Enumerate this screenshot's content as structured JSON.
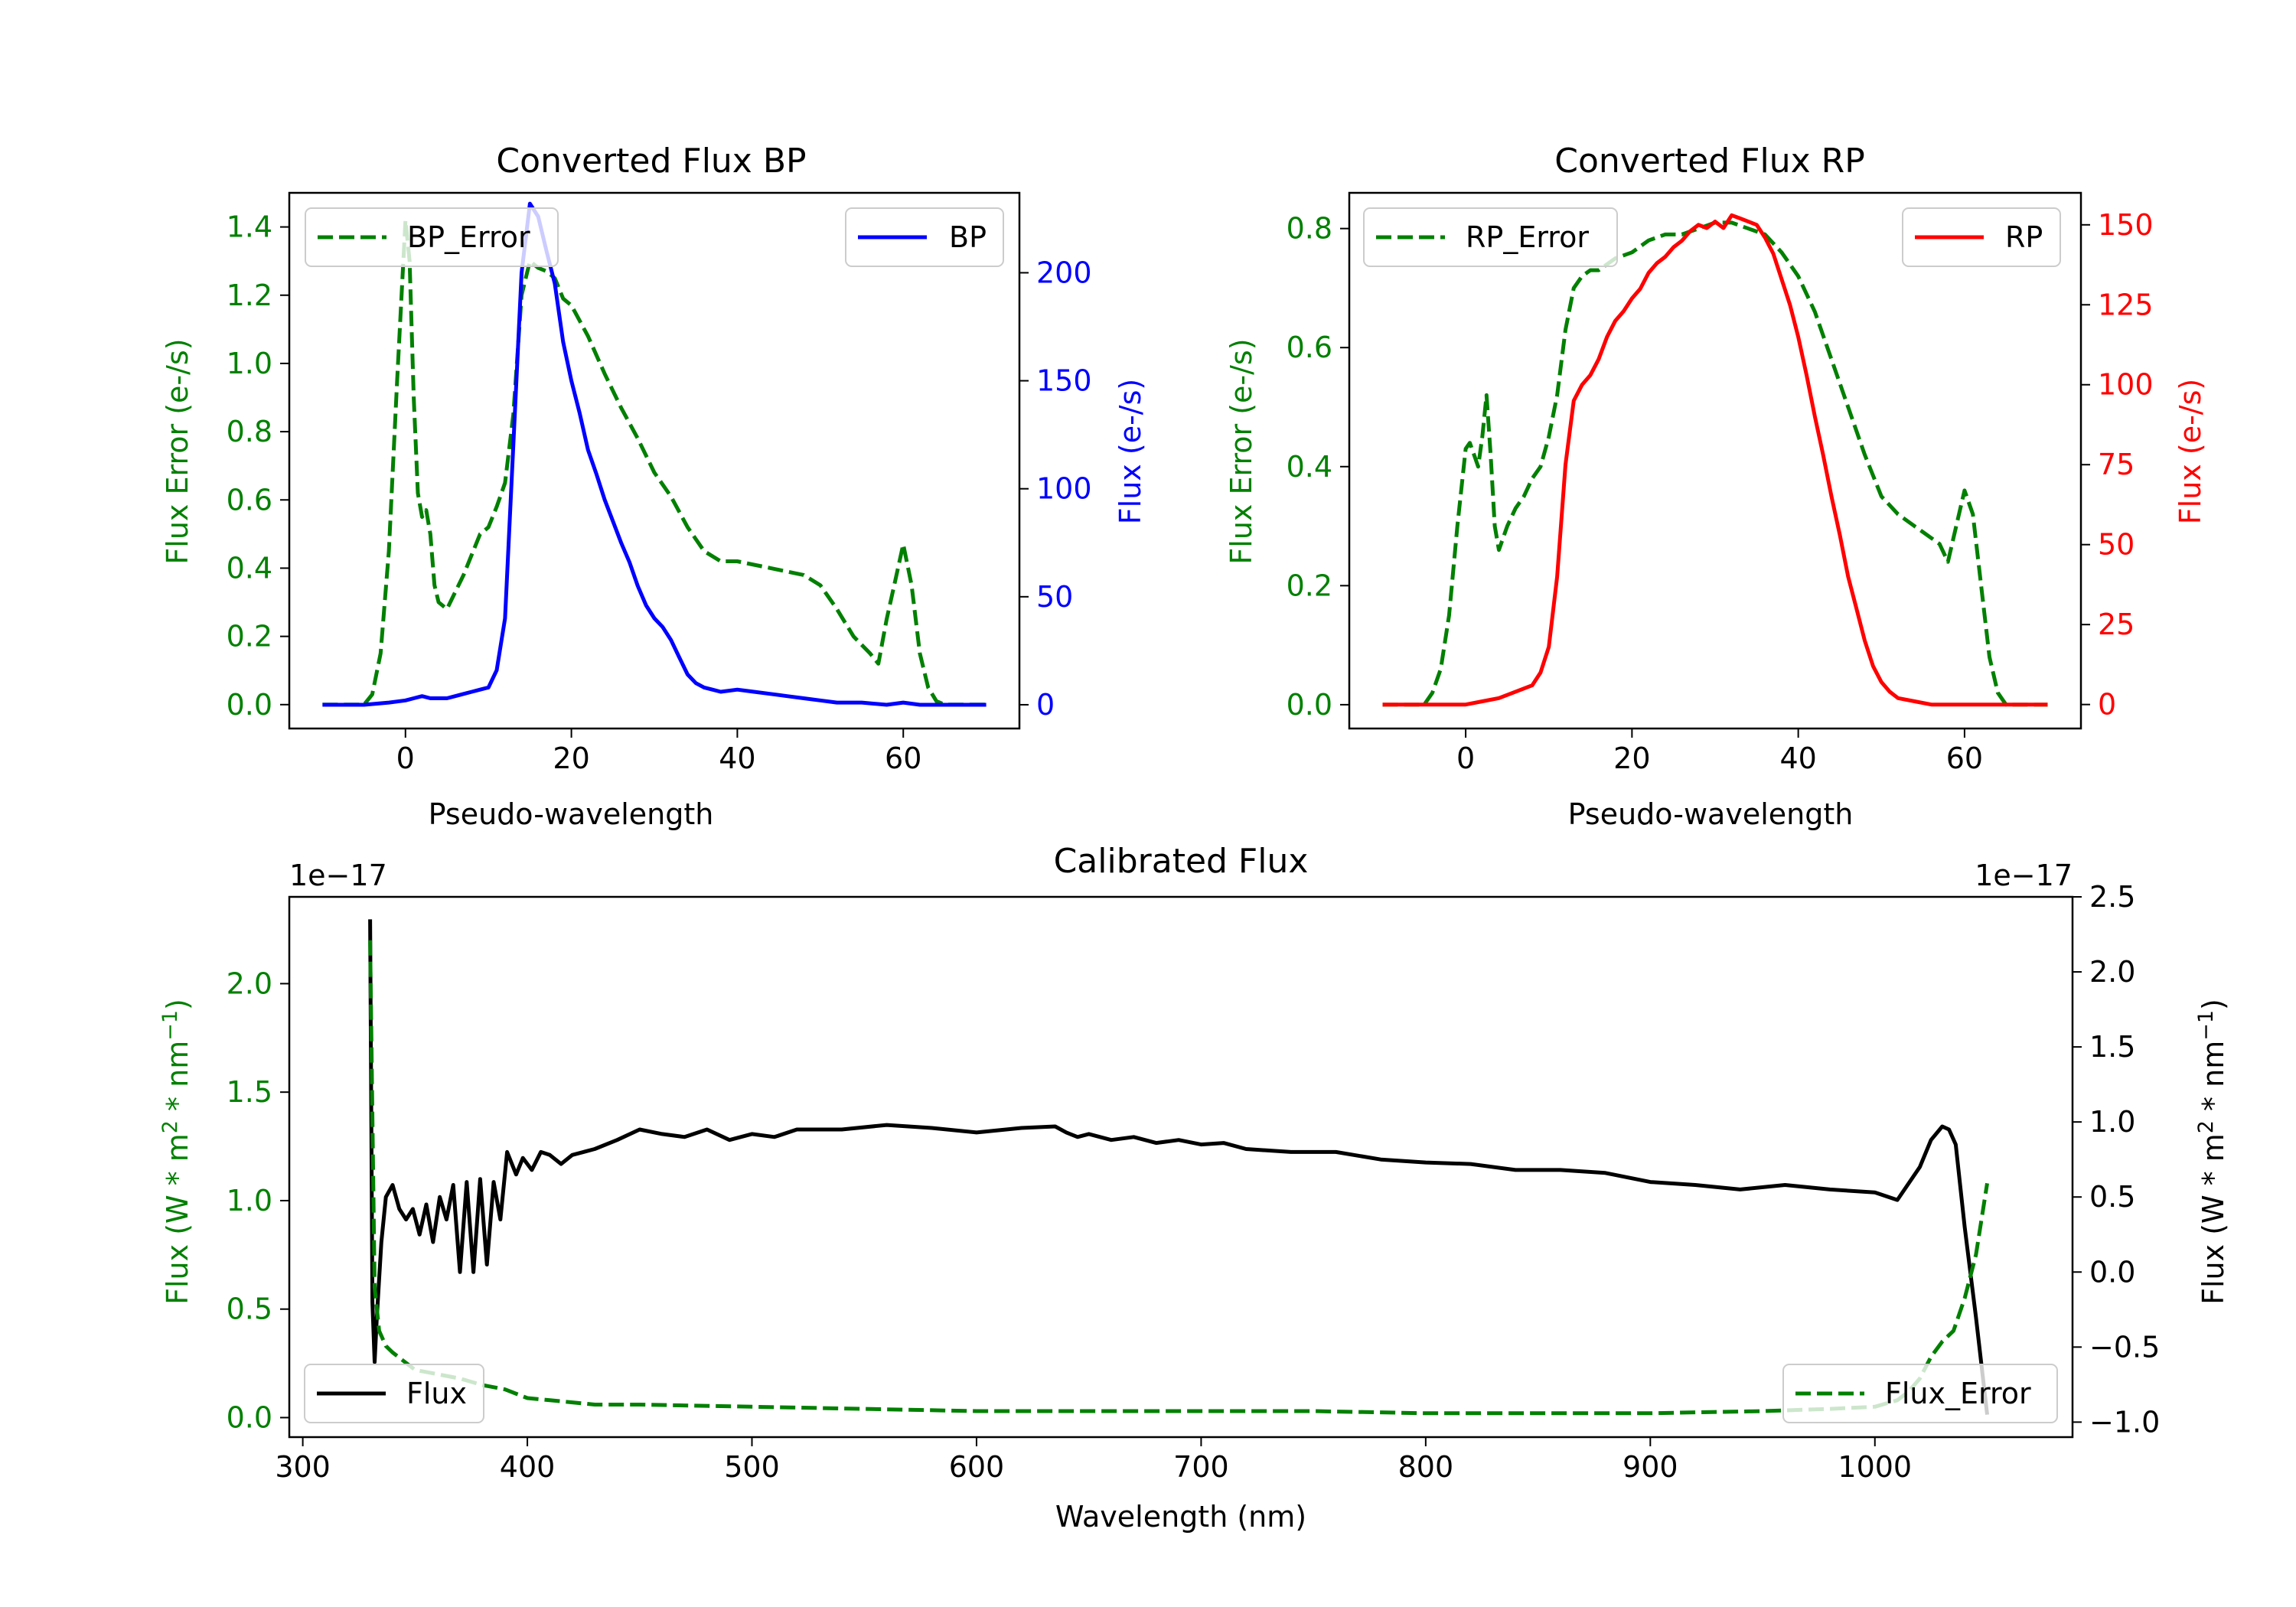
{
  "colors": {
    "green": "#008000",
    "blue": "#0000ff",
    "red": "#ff0000",
    "black": "#000000"
  },
  "chart_data": [
    {
      "id": "bp",
      "type": "line",
      "title": "Converted Flux BP",
      "xlabel": "Pseudo-wavelength",
      "xlim": [
        -14,
        74
      ],
      "xticks": [
        0,
        20,
        40,
        60
      ],
      "left_axis": {
        "label": "Flux Error (e-/s)",
        "color": "#008000",
        "ylim": [
          -0.07,
          1.5
        ],
        "ticks": [
          0.0,
          0.2,
          0.4,
          0.6,
          0.8,
          1.0,
          1.2,
          1.4
        ],
        "tick_labels": [
          "0.0",
          "0.2",
          "0.4",
          "0.6",
          "0.8",
          "1.0",
          "1.2",
          "1.4"
        ]
      },
      "right_axis": {
        "label": "Flux (e-/s)",
        "color": "#0000ff",
        "ylim": [
          -11,
          237
        ],
        "ticks": [
          0,
          50,
          100,
          150,
          200
        ],
        "tick_labels": [
          "0",
          "50",
          "100",
          "150",
          "200"
        ]
      },
      "series": [
        {
          "name": "BP_Error",
          "axis": "left",
          "style": "dashed",
          "color": "#008000",
          "x": [
            -10,
            -5,
            -4,
            -3,
            -2,
            -1,
            0,
            0.5,
            1,
            1.5,
            2,
            2.5,
            3,
            3.5,
            4,
            5,
            6,
            7,
            8,
            9,
            10,
            11,
            12,
            13,
            14,
            15,
            16,
            17,
            18,
            19,
            20,
            22,
            24,
            26,
            28,
            30,
            32,
            34,
            36,
            38,
            40,
            42,
            44,
            46,
            48,
            50,
            52,
            54,
            56,
            57,
            58,
            59,
            60,
            61,
            62,
            63,
            64,
            65,
            70
          ],
          "y": [
            0.0,
            0.0,
            0.03,
            0.15,
            0.45,
            0.95,
            1.42,
            1.3,
            0.9,
            0.62,
            0.55,
            0.57,
            0.5,
            0.35,
            0.3,
            0.28,
            0.33,
            0.38,
            0.44,
            0.5,
            0.52,
            0.58,
            0.65,
            0.85,
            1.2,
            1.3,
            1.28,
            1.27,
            1.25,
            1.19,
            1.17,
            1.08,
            0.97,
            0.87,
            0.78,
            0.68,
            0.61,
            0.52,
            0.45,
            0.42,
            0.42,
            0.41,
            0.4,
            0.39,
            0.38,
            0.35,
            0.28,
            0.2,
            0.15,
            0.12,
            0.25,
            0.36,
            0.47,
            0.35,
            0.15,
            0.05,
            0.01,
            0.0,
            0.0
          ]
        },
        {
          "name": "BP",
          "axis": "right",
          "style": "solid",
          "color": "#0000ff",
          "x": [
            -10,
            -5,
            -2,
            0,
            1,
            2,
            3,
            4,
            5,
            6,
            7,
            8,
            9,
            10,
            11,
            12,
            13,
            14,
            15,
            16,
            17,
            18,
            19,
            20,
            21,
            22,
            23,
            24,
            25,
            26,
            27,
            28,
            29,
            30,
            31,
            32,
            33,
            34,
            35,
            36,
            37,
            38,
            40,
            42,
            44,
            46,
            48,
            50,
            52,
            55,
            58,
            60,
            62,
            65,
            70
          ],
          "y": [
            0,
            0,
            1,
            2,
            3,
            4,
            3,
            3,
            3,
            4,
            5,
            6,
            7,
            8,
            16,
            40,
            120,
            200,
            232,
            226,
            210,
            195,
            168,
            150,
            135,
            118,
            107,
            95,
            85,
            75,
            66,
            55,
            46,
            40,
            36,
            30,
            22,
            14,
            10,
            8,
            7,
            6,
            7,
            6,
            5,
            4,
            3,
            2,
            1,
            1,
            0,
            1,
            0,
            0,
            0
          ]
        }
      ],
      "legend": [
        {
          "label": "BP_Error",
          "placement": "upper-left"
        },
        {
          "label": "BP",
          "placement": "upper-right"
        }
      ]
    },
    {
      "id": "rp",
      "type": "line",
      "title": "Converted Flux RP",
      "xlabel": "Pseudo-wavelength",
      "xlim": [
        -14,
        74
      ],
      "xticks": [
        0,
        20,
        40,
        60
      ],
      "left_axis": {
        "label": "Flux Error (e-/s)",
        "color": "#008000",
        "ylim": [
          -0.04,
          0.86
        ],
        "ticks": [
          0.0,
          0.2,
          0.4,
          0.6,
          0.8
        ],
        "tick_labels": [
          "0.0",
          "0.2",
          "0.4",
          "0.6",
          "0.8"
        ]
      },
      "right_axis": {
        "label": "Flux (e-/s)",
        "color": "#ff0000",
        "ylim": [
          -7.5,
          160
        ],
        "ticks": [
          0,
          25,
          50,
          75,
          100,
          125,
          150
        ],
        "tick_labels": [
          "0",
          "25",
          "50",
          "75",
          "100",
          "125",
          "150"
        ]
      },
      "series": [
        {
          "name": "RP_Error",
          "axis": "left",
          "style": "dashed",
          "color": "#008000",
          "x": [
            -10,
            -5,
            -4,
            -3,
            -2,
            -1,
            0,
            0.5,
            1,
            1.5,
            2,
            2.5,
            3,
            3.5,
            4,
            5,
            6,
            7,
            8,
            9,
            10,
            11,
            12,
            13,
            14,
            15,
            16,
            17,
            18,
            20,
            22,
            24,
            26,
            28,
            30,
            32,
            34,
            36,
            38,
            40,
            42,
            44,
            46,
            48,
            50,
            52,
            54,
            55,
            56,
            57,
            58,
            59,
            60,
            61,
            62,
            63,
            64,
            65,
            70
          ],
          "y": [
            0.0,
            0.0,
            0.02,
            0.06,
            0.15,
            0.3,
            0.43,
            0.44,
            0.42,
            0.4,
            0.45,
            0.52,
            0.42,
            0.3,
            0.26,
            0.3,
            0.33,
            0.35,
            0.38,
            0.4,
            0.45,
            0.52,
            0.63,
            0.7,
            0.72,
            0.73,
            0.73,
            0.74,
            0.75,
            0.76,
            0.78,
            0.79,
            0.79,
            0.8,
            0.81,
            0.81,
            0.8,
            0.79,
            0.76,
            0.72,
            0.66,
            0.58,
            0.5,
            0.42,
            0.35,
            0.32,
            0.3,
            0.29,
            0.28,
            0.27,
            0.24,
            0.3,
            0.36,
            0.32,
            0.2,
            0.08,
            0.02,
            0.0,
            0.0
          ]
        },
        {
          "name": "RP",
          "axis": "right",
          "style": "solid",
          "color": "#ff0000",
          "x": [
            -10,
            -5,
            0,
            2,
            4,
            6,
            8,
            9,
            10,
            11,
            12,
            13,
            14,
            15,
            16,
            17,
            18,
            19,
            20,
            21,
            22,
            23,
            24,
            25,
            26,
            27,
            28,
            29,
            30,
            31,
            32,
            33,
            34,
            35,
            36,
            37,
            38,
            39,
            40,
            41,
            42,
            43,
            44,
            45,
            46,
            47,
            48,
            49,
            50,
            51,
            52,
            54,
            56,
            60,
            65,
            70
          ],
          "y": [
            0,
            0,
            0,
            1,
            2,
            4,
            6,
            10,
            18,
            40,
            75,
            95,
            100,
            103,
            108,
            115,
            120,
            123,
            127,
            130,
            135,
            138,
            140,
            143,
            145,
            148,
            150,
            149,
            151,
            149,
            153,
            152,
            151,
            150,
            146,
            141,
            133,
            125,
            115,
            103,
            90,
            78,
            65,
            53,
            40,
            30,
            20,
            12,
            7,
            4,
            2,
            1,
            0,
            0,
            0,
            0
          ]
        }
      ],
      "legend": [
        {
          "label": "RP_Error",
          "placement": "upper-left"
        },
        {
          "label": "RP",
          "placement": "upper-right"
        }
      ]
    },
    {
      "id": "cal",
      "type": "line",
      "title": "Calibrated Flux",
      "xlabel": "Wavelength (nm)",
      "xlim": [
        294,
        1088
      ],
      "xticks": [
        300,
        400,
        500,
        600,
        700,
        800,
        900,
        1000
      ],
      "left_axis": {
        "label_main": "Flux (W * m",
        "label_sup1": "2",
        "label_mid": " * nm",
        "label_sup2": "−1",
        "label_end": ")",
        "color": "#008000",
        "offset_text": "1e−17",
        "ylim": [
          -0.09,
          2.4
        ],
        "ticks": [
          0.0,
          0.5,
          1.0,
          1.5,
          2.0
        ],
        "tick_labels": [
          "0.0",
          "0.5",
          "1.0",
          "1.5",
          "2.0"
        ]
      },
      "right_axis": {
        "label_main": "Flux (W * m",
        "label_sup1": "2",
        "label_mid": " * nm",
        "label_sup2": "−1",
        "label_end": ")",
        "color": "#000000",
        "offset_text": "1e−17",
        "ylim": [
          -1.1,
          2.5
        ],
        "ticks": [
          -1.0,
          -0.5,
          0.0,
          0.5,
          1.0,
          1.5,
          2.0,
          2.5
        ],
        "tick_labels": [
          "−1.0",
          "−0.5",
          "0.0",
          "0.5",
          "1.0",
          "1.5",
          "2.0",
          "2.5"
        ]
      },
      "series": [
        {
          "name": "Flux",
          "axis": "right",
          "style": "solid",
          "color": "#000000",
          "x": [
            330,
            331,
            332,
            333,
            335,
            337,
            340,
            343,
            346,
            349,
            352,
            355,
            358,
            361,
            364,
            367,
            370,
            373,
            376,
            379,
            382,
            385,
            388,
            391,
            395,
            398,
            402,
            406,
            410,
            415,
            420,
            425,
            430,
            440,
            450,
            460,
            470,
            480,
            490,
            500,
            510,
            520,
            540,
            560,
            580,
            600,
            620,
            635,
            640,
            645,
            650,
            660,
            670,
            680,
            690,
            700,
            710,
            720,
            740,
            760,
            780,
            800,
            820,
            840,
            860,
            880,
            900,
            920,
            940,
            960,
            980,
            1000,
            1010,
            1020,
            1025,
            1030,
            1033,
            1036,
            1040,
            1045,
            1050
          ],
          "y": [
            2.35,
            -0.2,
            -0.6,
            -0.3,
            0.2,
            0.5,
            0.58,
            0.42,
            0.35,
            0.42,
            0.25,
            0.45,
            0.2,
            0.5,
            0.35,
            0.58,
            0.0,
            0.6,
            0.0,
            0.62,
            0.05,
            0.6,
            0.35,
            0.8,
            0.65,
            0.76,
            0.68,
            0.8,
            0.78,
            0.72,
            0.78,
            0.8,
            0.82,
            0.88,
            0.95,
            0.92,
            0.9,
            0.95,
            0.88,
            0.92,
            0.9,
            0.95,
            0.95,
            0.98,
            0.96,
            0.93,
            0.96,
            0.97,
            0.93,
            0.9,
            0.92,
            0.88,
            0.9,
            0.86,
            0.88,
            0.85,
            0.86,
            0.82,
            0.8,
            0.8,
            0.75,
            0.73,
            0.72,
            0.68,
            0.68,
            0.66,
            0.6,
            0.58,
            0.55,
            0.58,
            0.55,
            0.53,
            0.48,
            0.7,
            0.88,
            0.97,
            0.95,
            0.85,
            0.3,
            -0.3,
            -0.95
          ]
        },
        {
          "name": "Flux_Error",
          "axis": "left",
          "style": "dashed",
          "color": "#008000",
          "x": [
            330,
            332,
            334,
            337,
            340,
            345,
            350,
            360,
            370,
            380,
            390,
            400,
            410,
            420,
            430,
            450,
            500,
            550,
            600,
            650,
            700,
            750,
            800,
            850,
            900,
            950,
            980,
            1000,
            1010,
            1015,
            1020,
            1025,
            1030,
            1035,
            1040,
            1045,
            1050
          ],
          "y": [
            2.2,
            0.6,
            0.4,
            0.33,
            0.3,
            0.26,
            0.22,
            0.2,
            0.18,
            0.15,
            0.13,
            0.09,
            0.08,
            0.07,
            0.06,
            0.06,
            0.05,
            0.04,
            0.03,
            0.03,
            0.03,
            0.03,
            0.02,
            0.02,
            0.02,
            0.03,
            0.04,
            0.05,
            0.08,
            0.12,
            0.18,
            0.28,
            0.35,
            0.4,
            0.55,
            0.75,
            1.08
          ]
        }
      ],
      "legend": [
        {
          "label": "Flux",
          "placement": "lower-left"
        },
        {
          "label": "Flux_Error",
          "placement": "lower-right"
        }
      ]
    }
  ]
}
